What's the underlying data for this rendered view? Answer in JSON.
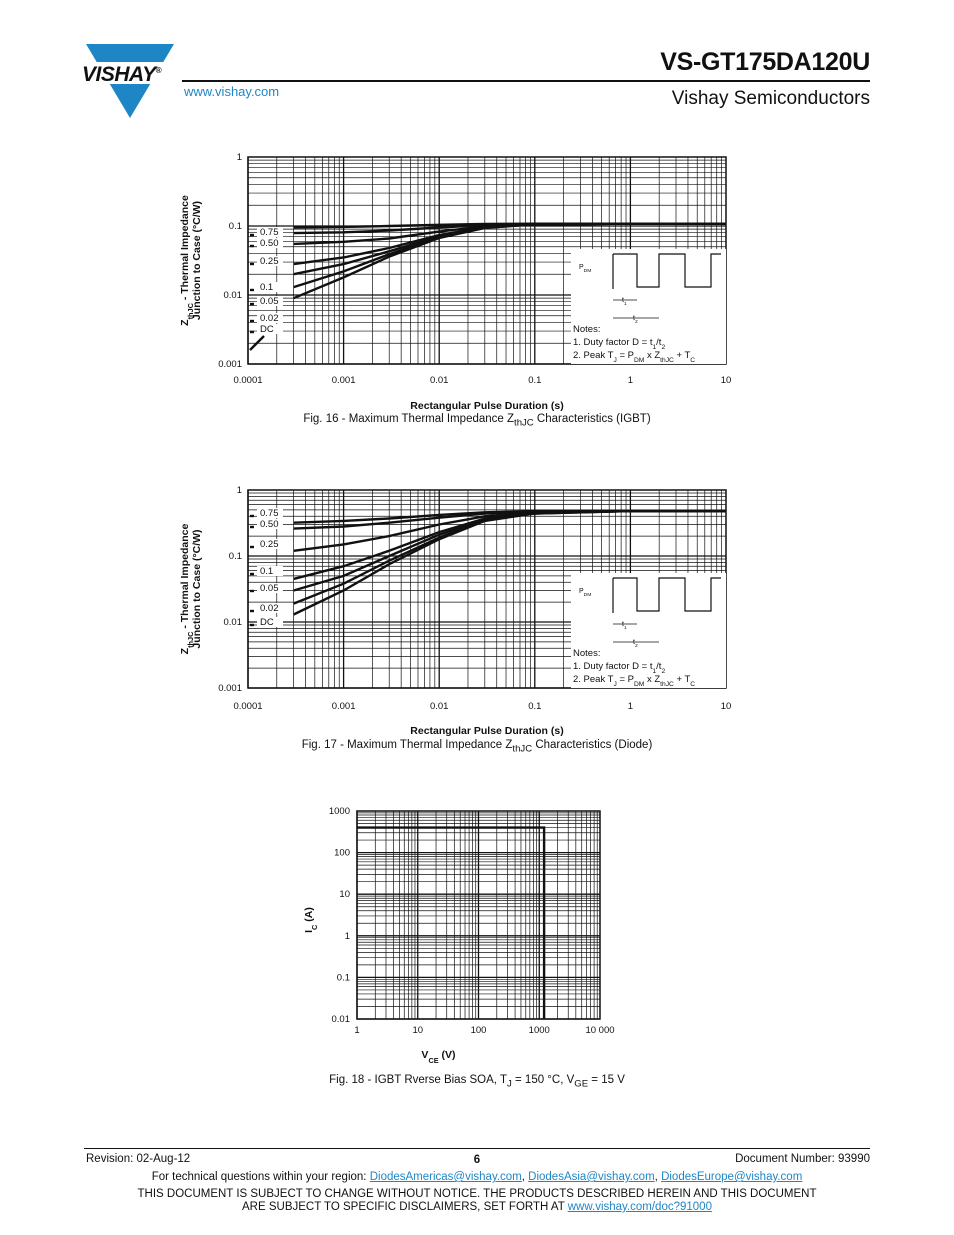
{
  "header": {
    "part_number": "VS-GT175DA120U",
    "company": "Vishay Semiconductors",
    "website": "www.vishay.com",
    "logo_text": "VISHAY",
    "logo_registered": "®"
  },
  "figures": [
    {
      "caption": "Fig. 16 - Maximum Thermal Impedance ZthJC Characteristics (IGBT)",
      "caption_pre": "Fig. 16 - Maximum Thermal Impedance Z",
      "caption_sub": "thJC",
      "caption_post": " Characteristics (IGBT)",
      "ylabel": "ZthJC - Thermal Impedance Junction to Case (°C/W)",
      "ylabel_pre": "Z",
      "ylabel_sub": "thJC",
      "ylabel_post": " - Thermal Impedance",
      "ylabel_line2": "Junction to Case (°C/W)",
      "xlabel": "Rectangular Pulse Duration (s)",
      "x_ticks": [
        "0.0001",
        "0.001",
        "0.01",
        "0.1",
        "1",
        "10"
      ],
      "y_ticks": [
        "1",
        "0.1",
        "0.01",
        "0.001"
      ],
      "curve_labels": [
        "0.75",
        "0.50",
        "0.25",
        "0.1",
        "0.05",
        "0.02",
        "DC"
      ],
      "notes_title": "Notes:",
      "note1_pre": "1. Duty factor D = t",
      "note1_s1": "1",
      "note1_mid": "/t",
      "note1_s2": "2",
      "note2_pre": "2. Peak T",
      "note2_sJ": "J",
      "note2_a": " = P",
      "note2_sDM": "DM",
      "note2_b": " x Z",
      "note2_sth": "thJC",
      "note2_c": " + T",
      "note2_sC": "C",
      "pulse_p": "P",
      "pulse_dm": "DM",
      "pulse_t": "t",
      "pulse_t1": "1",
      "pulse_t2": "2"
    },
    {
      "caption": "Fig. 17 - Maximum Thermal Impedance ZthJC Characteristics (Diode)",
      "caption_pre": "Fig. 17 - Maximum Thermal Impedance Z",
      "caption_sub": "thJC",
      "caption_post": " Characteristics (Diode)",
      "ylabel": "ZthJC - Thermal Impedance Junction to Case (°C/W)",
      "ylabel_pre": "Z",
      "ylabel_sub": "thJC",
      "ylabel_post": " - Thermal Impedance",
      "ylabel_line2": "Junction to Case (°C/W)",
      "xlabel": "Rectangular Pulse Duration (s)",
      "x_ticks": [
        "0.0001",
        "0.001",
        "0.01",
        "0.1",
        "1",
        "10"
      ],
      "y_ticks": [
        "1",
        "0.1",
        "0.01",
        "0.001"
      ],
      "curve_labels": [
        "0.75",
        "0.50",
        "0.25",
        "0.1",
        "0.05",
        "0.02",
        "DC"
      ],
      "notes_title": "Notes:",
      "note1_pre": "1. Duty factor D = t",
      "note1_s1": "1",
      "note1_mid": "/t",
      "note1_s2": "2",
      "note2_pre": "2. Peak T",
      "note2_sJ": "J",
      "note2_a": " = P",
      "note2_sDM": "DM",
      "note2_b": " x Z",
      "note2_sth": "thJC",
      "note2_c": " + T",
      "note2_sC": "C",
      "pulse_p": "P",
      "pulse_dm": "DM",
      "pulse_t": "t",
      "pulse_t1": "1",
      "pulse_t2": "2"
    },
    {
      "caption": "Fig. 18 - IGBT Rverse Bias SOA, TJ = 150 °C, VGE = 15 V",
      "caption_pre": "Fig. 18 - IGBT Rverse Bias SOA, T",
      "caption_sub1": "J",
      "caption_mid": " = 150 °C, V",
      "caption_sub2": "GE",
      "caption_post": " = 15 V",
      "ylabel_pre": "I",
      "ylabel_sub": "C",
      "ylabel_post": " (A)",
      "xlabel_pre": "V",
      "xlabel_sub": "CE",
      "xlabel_post": " (V)",
      "x_ticks": [
        "1",
        "10",
        "100",
        "1000",
        "10 000"
      ],
      "y_ticks": [
        "1000",
        "100",
        "10",
        "1",
        "0.1",
        "0.01"
      ]
    }
  ],
  "chart_data": [
    {
      "type": "line",
      "title": "Fig. 16 - Maximum Thermal Impedance ZthJC Characteristics (IGBT)",
      "xlabel": "Rectangular Pulse Duration (s)",
      "ylabel": "ZthJC - Thermal Impedance Junction to Case (°C/W)",
      "xscale": "log",
      "yscale": "log",
      "xlim": [
        0.0001,
        10
      ],
      "ylim": [
        0.001,
        1
      ],
      "grid": true,
      "x": [
        0.0003,
        0.001,
        0.003,
        0.01,
        0.03,
        0.1,
        1,
        10
      ],
      "series": [
        {
          "name": "0.75",
          "values": [
            0.095,
            0.097,
            0.1,
            0.104,
            0.107,
            0.108,
            0.108,
            0.108
          ]
        },
        {
          "name": "0.50",
          "values": [
            0.079,
            0.081,
            0.086,
            0.095,
            0.103,
            0.107,
            0.108,
            0.108
          ]
        },
        {
          "name": "0.25",
          "values": [
            0.055,
            0.059,
            0.066,
            0.083,
            0.099,
            0.106,
            0.108,
            0.108
          ]
        },
        {
          "name": "0.1",
          "values": [
            0.028,
            0.035,
            0.048,
            0.074,
            0.096,
            0.106,
            0.108,
            0.108
          ]
        },
        {
          "name": "0.05",
          "values": [
            0.02,
            0.028,
            0.043,
            0.071,
            0.095,
            0.106,
            0.108,
            0.108
          ]
        },
        {
          "name": "0.02",
          "values": [
            0.013,
            0.022,
            0.039,
            0.069,
            0.094,
            0.106,
            0.108,
            0.108
          ]
        },
        {
          "name": "DC",
          "values": [
            0.009,
            0.018,
            0.036,
            0.067,
            0.094,
            0.106,
            0.108,
            0.108
          ]
        }
      ]
    },
    {
      "type": "line",
      "title": "Fig. 17 - Maximum Thermal Impedance ZthJC Characteristics (Diode)",
      "xlabel": "Rectangular Pulse Duration (s)",
      "ylabel": "ZthJC - Thermal Impedance Junction to Case (°C/W)",
      "xscale": "log",
      "yscale": "log",
      "xlim": [
        0.0001,
        10
      ],
      "ylim": [
        0.001,
        1
      ],
      "grid": true,
      "x": [
        0.0003,
        0.001,
        0.003,
        0.01,
        0.03,
        0.1,
        1,
        10
      ],
      "series": [
        {
          "name": "0.75",
          "values": [
            0.32,
            0.34,
            0.37,
            0.42,
            0.46,
            0.48,
            0.48,
            0.48
          ]
        },
        {
          "name": "0.50",
          "values": [
            0.26,
            0.28,
            0.32,
            0.38,
            0.44,
            0.47,
            0.48,
            0.48
          ]
        },
        {
          "name": "0.25",
          "values": [
            0.12,
            0.15,
            0.2,
            0.3,
            0.4,
            0.46,
            0.48,
            0.48
          ]
        },
        {
          "name": "0.1",
          "values": [
            0.045,
            0.07,
            0.12,
            0.23,
            0.37,
            0.45,
            0.48,
            0.48
          ]
        },
        {
          "name": "0.05",
          "values": [
            0.03,
            0.05,
            0.1,
            0.21,
            0.36,
            0.45,
            0.48,
            0.48
          ]
        },
        {
          "name": "0.02",
          "values": [
            0.019,
            0.038,
            0.085,
            0.19,
            0.35,
            0.44,
            0.48,
            0.48
          ]
        },
        {
          "name": "DC",
          "values": [
            0.013,
            0.03,
            0.075,
            0.18,
            0.34,
            0.44,
            0.48,
            0.48
          ]
        }
      ]
    },
    {
      "type": "line",
      "title": "Fig. 18 - IGBT Rverse Bias SOA, TJ = 150 °C, VGE = 15 V",
      "xlabel": "VCE (V)",
      "ylabel": "IC (A)",
      "xscale": "log",
      "yscale": "log",
      "xlim": [
        1,
        10000
      ],
      "ylim": [
        0.01,
        1000
      ],
      "grid": true,
      "series": [
        {
          "name": "",
          "x": [
            1,
            1200,
            1200
          ],
          "y": [
            400,
            400,
            0.01
          ]
        }
      ]
    }
  ],
  "footer": {
    "revision": "Revision: 02-Aug-12",
    "page": "6",
    "document_number": "Document Number: 93990",
    "contact_text": "For technical questions within your region: ",
    "email_americas": "DiodesAmericas@vishay.com",
    "email_asia": "DiodesAsia@vishay.com",
    "email_europe": "DiodesEurope@vishay.com",
    "sep": ", ",
    "disclaimer_line1": "THIS DOCUMENT IS SUBJECT TO CHANGE WITHOUT NOTICE. THE PRODUCTS DESCRIBED HEREIN AND THIS DOCUMENT",
    "disclaimer_line2": "ARE SUBJECT TO SPECIFIC DISCLAIMERS, SET FORTH AT ",
    "disclaimer_link": "www.vishay.com/doc?91000"
  }
}
